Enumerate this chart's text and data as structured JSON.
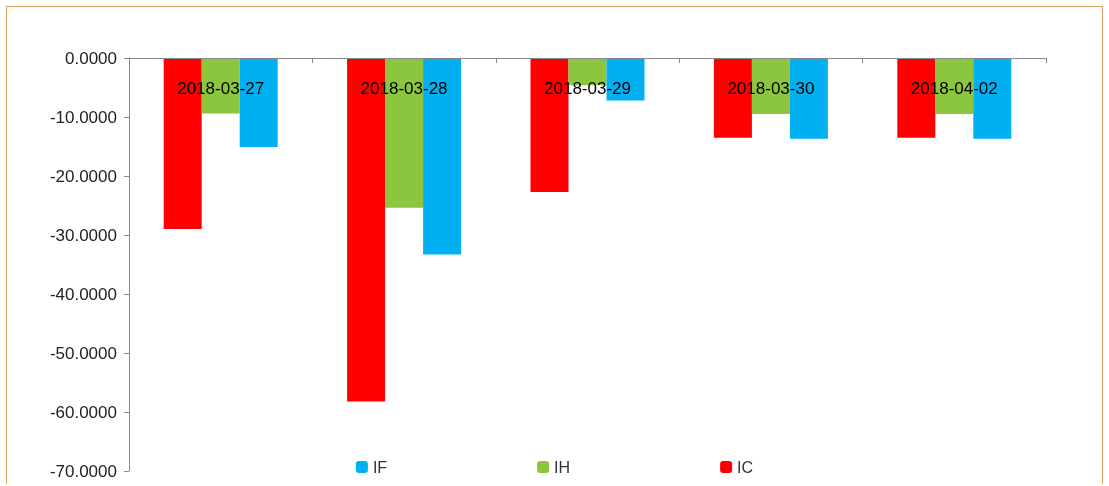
{
  "chart_data": {
    "type": "bar",
    "categories": [
      "2018-03-27",
      "2018-03-28",
      "2018-03-29",
      "2018-03-30",
      "2018-04-02"
    ],
    "series": [
      {
        "name": "IC",
        "color": "#ff0000",
        "values": [
          -29.0,
          -58.2,
          -22.7,
          -13.5,
          -13.5
        ]
      },
      {
        "name": "IH",
        "color": "#8cc63f",
        "values": [
          -9.4,
          -25.4,
          -4.6,
          -9.5,
          -9.5
        ]
      },
      {
        "name": "IF",
        "color": "#00b0f0",
        "values": [
          -15.1,
          -33.3,
          -7.2,
          -13.7,
          -13.7
        ]
      }
    ],
    "ylim": [
      -70,
      0
    ],
    "yticks": [
      {
        "value": -70,
        "label": "-70.0000"
      },
      {
        "value": -60,
        "label": "-60.0000"
      },
      {
        "value": -50,
        "label": "-50.0000"
      },
      {
        "value": -40,
        "label": "-40.0000"
      },
      {
        "value": -30,
        "label": "-30.0000"
      },
      {
        "value": -20,
        "label": "-20.0000"
      },
      {
        "value": -10,
        "label": "-10.0000"
      },
      {
        "value": 0,
        "label": "0.0000"
      }
    ],
    "grid": false,
    "legend": "bottom"
  }
}
